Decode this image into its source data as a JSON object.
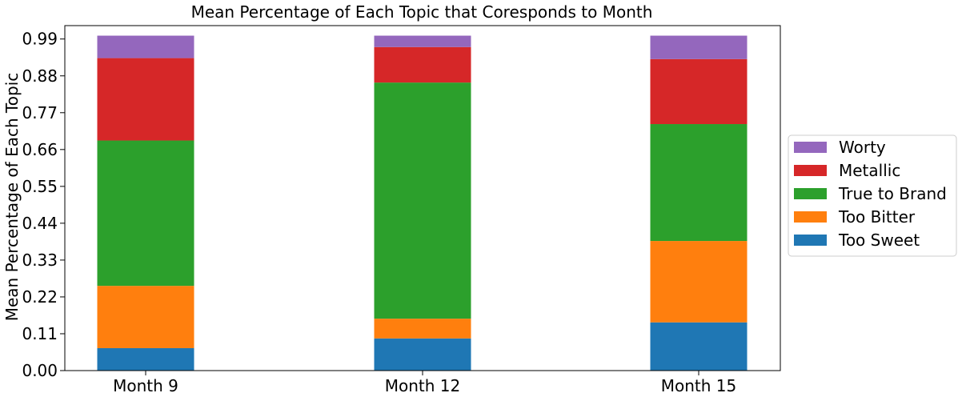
{
  "chart_data": {
    "type": "bar",
    "stacked": true,
    "title": "Mean Percentage of Each Topic that Coresponds to Month",
    "xlabel": "",
    "ylabel": "Mean Percentage of Each Topic",
    "categories": [
      "Month 9",
      "Month 12",
      "Month 15"
    ],
    "yticks": [
      "0.00",
      "0.11",
      "0.22",
      "0.33",
      "0.44",
      "0.55",
      "0.66",
      "0.77",
      "0.88",
      "0.99"
    ],
    "ylim": [
      0,
      1.03
    ],
    "grid": false,
    "legend_position": "right",
    "series": [
      {
        "name": "Too Sweet",
        "color": "#1f77b4",
        "values": [
          0.067,
          0.096,
          0.144
        ]
      },
      {
        "name": "Too Bitter",
        "color": "#ff7f0e",
        "values": [
          0.186,
          0.059,
          0.243
        ]
      },
      {
        "name": "True to Brand",
        "color": "#2ca02c",
        "values": [
          0.434,
          0.705,
          0.349
        ]
      },
      {
        "name": "Metallic",
        "color": "#d62728",
        "values": [
          0.246,
          0.106,
          0.194
        ]
      },
      {
        "name": "Worty",
        "color": "#9467bd",
        "values": [
          0.067,
          0.034,
          0.07
        ]
      }
    ]
  }
}
